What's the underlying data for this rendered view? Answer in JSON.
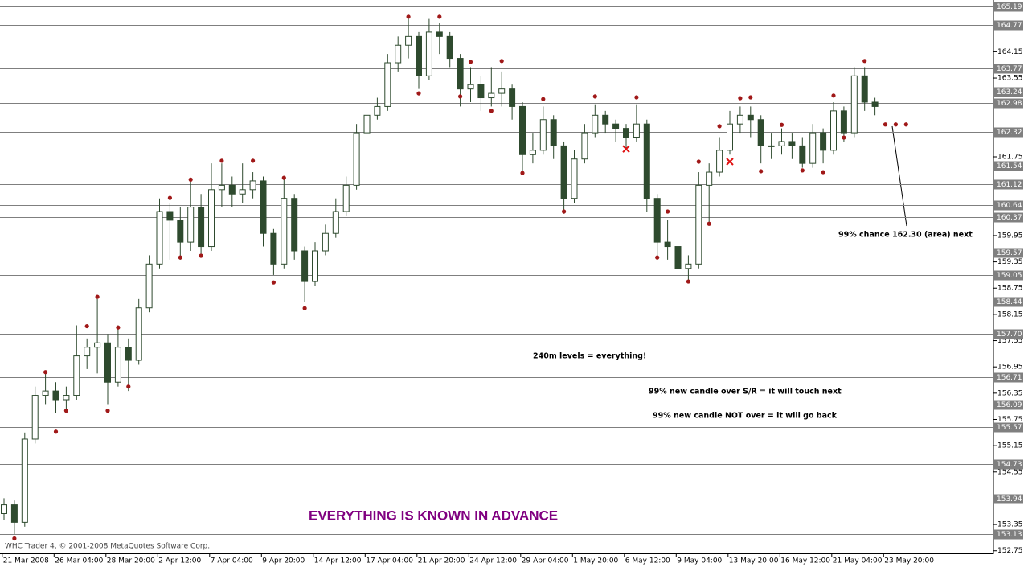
{
  "chart_data": {
    "type": "candlestick",
    "title": "EVERYTHING IS KNOWN IN ADVANCE",
    "footer": "WHC Trader 4, © 2001-2008 MetaQuotes Software Corp.",
    "annotations": [
      "99% chance 162.30 (area) next",
      "240m levels = everything!",
      "99% new candle over S/R = it will touch next",
      "99% new candle NOT over = it will go back"
    ],
    "categories": [
      null,
      null,
      "21 Mar 2008",
      null,
      null,
      null,
      null,
      "26 Mar 04:00",
      null,
      null,
      null,
      null,
      "28 Mar 20:00",
      null,
      null,
      null,
      null,
      "2 Apr 12:00",
      null,
      null,
      null,
      null,
      "7 Apr 04:00",
      null,
      null,
      null,
      null,
      "9 Apr 20:00",
      null,
      null,
      null,
      null,
      "14 Apr 12:00",
      null,
      null,
      null,
      null,
      "17 Apr 04:00",
      null,
      null,
      null,
      null,
      "21 Apr 20:00",
      null,
      null,
      null,
      null,
      "24 Apr 12:00",
      null,
      null,
      null,
      null,
      "29 Apr 04:00",
      null,
      null,
      null,
      null,
      "1 May 20:00",
      null,
      null,
      null,
      null,
      "6 May 12:00",
      null,
      null,
      null,
      null,
      "9 May 04:00",
      null,
      null,
      null,
      null,
      "13 May 20:00",
      null,
      null,
      null,
      null,
      "16 May 12:00",
      null,
      null,
      null,
      null,
      "21 May 04:00",
      null,
      null,
      null,
      null,
      "23 May 20:00"
    ],
    "open": [
      153.6,
      153.8,
      153.4,
      155.3,
      156.3,
      156.4,
      156.2,
      156.3,
      157.2,
      157.4,
      157.5,
      156.6,
      157.4,
      157.1,
      158.3,
      159.3,
      160.5,
      160.3,
      159.8,
      160.6,
      159.7,
      161.0,
      161.1,
      160.9,
      161.0,
      161.2,
      160.0,
      159.3,
      160.8,
      159.6,
      158.9,
      159.6,
      160.0,
      160.5,
      161.1,
      162.3,
      162.7,
      162.9,
      163.9,
      164.3,
      164.5,
      163.6,
      164.6,
      164.5,
      164.0,
      163.3,
      163.4,
      163.1,
      163.2,
      163.3,
      162.9,
      161.8,
      161.9,
      162.6,
      162.0,
      160.8,
      161.7,
      162.3,
      162.7,
      162.5,
      162.4,
      162.2,
      162.5,
      160.8,
      159.8,
      159.7,
      159.2,
      159.3,
      161.1,
      161.4,
      161.9,
      162.5,
      162.7,
      162.6,
      162.0,
      162.0,
      162.1,
      162.0,
      161.6,
      162.3,
      161.9,
      162.8,
      162.3,
      163.6,
      163.0,
      null,
      null,
      null
    ],
    "high": [
      153.95,
      153.9,
      155.45,
      156.5,
      156.8,
      156.6,
      156.5,
      157.9,
      157.6,
      158.5,
      157.7,
      157.9,
      157.6,
      158.5,
      159.5,
      160.8,
      160.7,
      160.6,
      161.2,
      160.9,
      161.6,
      161.6,
      161.3,
      161.6,
      161.4,
      161.3,
      160.1,
      161.3,
      160.9,
      159.7,
      159.8,
      160.2,
      160.8,
      161.3,
      162.5,
      162.9,
      163.1,
      164.1,
      164.5,
      164.9,
      164.6,
      164.9,
      164.8,
      164.6,
      164.1,
      163.8,
      163.6,
      163.8,
      163.7,
      163.4,
      163.0,
      162.3,
      162.9,
      162.7,
      162.1,
      161.9,
      162.5,
      162.95,
      162.8,
      162.6,
      162.5,
      162.95,
      162.6,
      160.9,
      160.3,
      159.8,
      159.5,
      161.4,
      161.6,
      162.2,
      162.8,
      162.9,
      162.9,
      162.7,
      162.3,
      162.4,
      162.3,
      162.2,
      162.5,
      162.4,
      163.0,
      162.9,
      163.8,
      163.8,
      163.1,
      null,
      null,
      null
    ],
    "low": [
      153.45,
      153.13,
      153.3,
      155.2,
      156.1,
      155.9,
      155.9,
      156.2,
      156.9,
      156.8,
      156.1,
      156.5,
      156.4,
      157.0,
      158.2,
      159.2,
      159.4,
      159.4,
      159.6,
      159.5,
      159.6,
      160.6,
      160.6,
      160.7,
      160.8,
      159.7,
      159.05,
      159.2,
      159.4,
      158.44,
      158.8,
      159.5,
      159.9,
      160.4,
      161.0,
      162.1,
      162.6,
      162.8,
      163.7,
      164.0,
      163.3,
      163.5,
      164.1,
      163.8,
      162.9,
      163.0,
      162.8,
      162.9,
      162.9,
      162.6,
      161.4,
      161.6,
      161.8,
      161.7,
      160.45,
      160.7,
      161.6,
      162.2,
      162.3,
      162.1,
      161.9,
      162.1,
      160.5,
      159.4,
      159.4,
      158.7,
      158.9,
      159.2,
      160.2,
      161.3,
      161.8,
      162.3,
      162.2,
      161.6,
      161.7,
      161.8,
      161.7,
      161.5,
      161.5,
      161.6,
      161.8,
      162.1,
      162.2,
      162.8,
      162.7,
      null,
      null,
      null
    ],
    "close": [
      153.8,
      153.4,
      155.3,
      156.3,
      156.4,
      156.2,
      156.3,
      157.2,
      157.4,
      157.5,
      156.6,
      157.4,
      157.1,
      158.3,
      159.3,
      160.5,
      160.3,
      159.8,
      160.6,
      159.7,
      161.0,
      161.1,
      160.9,
      161.0,
      161.2,
      160.0,
      159.3,
      160.8,
      159.6,
      158.9,
      159.6,
      160.0,
      160.5,
      161.1,
      162.3,
      162.7,
      162.9,
      163.9,
      164.3,
      164.5,
      163.6,
      164.6,
      164.5,
      164.0,
      163.3,
      163.4,
      163.1,
      163.2,
      163.3,
      162.9,
      161.8,
      161.9,
      162.6,
      162.0,
      160.8,
      161.7,
      162.3,
      162.7,
      162.5,
      162.4,
      162.2,
      162.5,
      160.8,
      159.8,
      159.7,
      159.2,
      159.3,
      161.1,
      161.4,
      161.9,
      162.5,
      162.7,
      162.6,
      162.0,
      162.0,
      162.1,
      162.0,
      161.6,
      162.3,
      161.9,
      162.8,
      162.3,
      163.6,
      163.0,
      162.9,
      null,
      null,
      null
    ],
    "up_color": "#ffffff",
    "down_color": "#2e4a2e",
    "outline_color": "#2e4a2e",
    "fractals": {
      "color": "#a01818",
      "x": [
        1,
        4,
        5,
        6,
        8,
        9,
        10,
        11,
        12,
        16,
        17,
        18,
        19,
        21,
        24,
        26,
        27,
        29,
        39,
        40,
        42,
        44,
        45,
        47,
        48,
        50,
        52,
        54,
        57,
        61,
        63,
        64,
        66,
        67,
        68,
        69,
        71,
        72,
        73,
        75,
        77,
        79,
        80,
        81,
        83,
        85,
        86,
        87
      ],
      "values": [
        153.03,
        156.83,
        155.47,
        155.95,
        157.88,
        158.55,
        155.95,
        157.85,
        156.5,
        160.81,
        159.45,
        161.23,
        159.49,
        161.66,
        161.66,
        158.88,
        161.27,
        158.29,
        164.95,
        163.2,
        164.95,
        163.13,
        163.92,
        162.8,
        163.94,
        161.38,
        163.07,
        160.5,
        163.13,
        163.11,
        159.45,
        160.5,
        158.9,
        161.64,
        160.22,
        162.45,
        163.09,
        163.11,
        161.42,
        162.48,
        161.44,
        161.4,
        163.15,
        162.19,
        163.94,
        162.49,
        162.49,
        162.49
      ]
    },
    "crosses": {
      "color": "#e01010",
      "x": [
        60,
        70
      ],
      "values": [
        161.93,
        161.64
      ]
    },
    "levels": [
      165.19,
      164.77,
      163.77,
      163.24,
      162.98,
      162.32,
      161.54,
      161.12,
      160.64,
      160.37,
      159.57,
      159.05,
      158.44,
      {
        "value": 157.7,
        "label": "157.70"
      },
      156.71,
      156.09,
      155.57,
      154.73,
      153.94,
      153.13
    ],
    "level_color": "#7f7f7f",
    "ylim": [
      152.69,
      165.26
    ],
    "yticks": [
      164.15,
      163.55,
      161.75,
      159.95,
      159.35,
      158.75,
      158.15,
      157.55,
      156.95,
      156.35,
      155.75,
      155.15,
      154.55,
      153.35,
      152.75
    ]
  }
}
